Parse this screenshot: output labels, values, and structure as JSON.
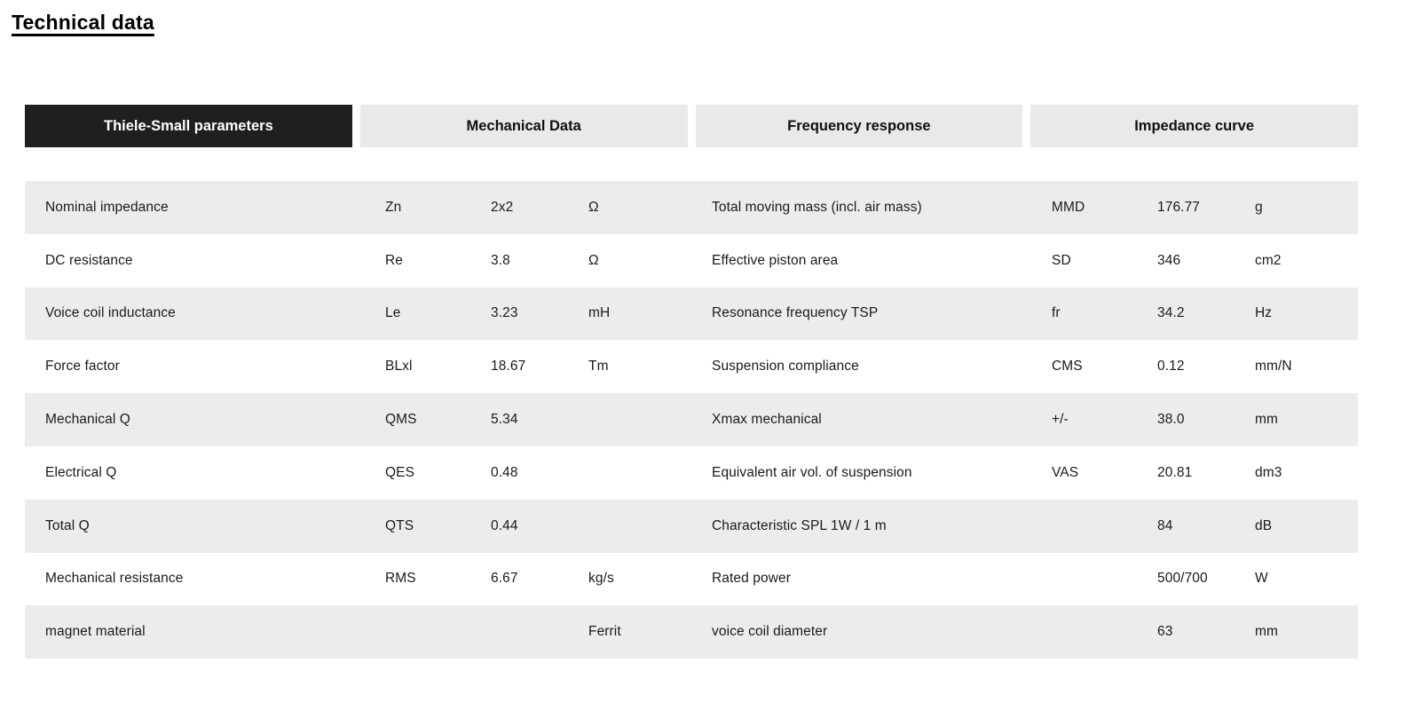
{
  "page": {
    "title": "Technical data"
  },
  "colors": {
    "active_tab_bg": "#1f1f1f",
    "active_tab_text": "#ffffff",
    "inactive_tab_bg": "#e9e9e9",
    "stripe_bg": "#ececec",
    "text": "#1a1a1a"
  },
  "tabs": [
    {
      "label": "Thiele-Small parameters",
      "slug": "thiele-small-parameters",
      "active": true
    },
    {
      "label": "Mechanical Data",
      "slug": "mechanical-data",
      "active": false
    },
    {
      "label": "Frequency response",
      "slug": "frequency-response",
      "active": false
    },
    {
      "label": "Impedance curve",
      "slug": "impedance-curve",
      "active": false
    }
  ],
  "table": {
    "rows": [
      {
        "left": {
          "label": "Nominal impedance",
          "symbol": "Zn",
          "value": "2x2",
          "unit": "Ω"
        },
        "right": {
          "label": "Total moving mass (incl. air mass)",
          "symbol": "MMD",
          "value": "176.77",
          "unit": "g"
        }
      },
      {
        "left": {
          "label": "DC resistance",
          "symbol": "Re",
          "value": "3.8",
          "unit": "Ω"
        },
        "right": {
          "label": "Effective piston area",
          "symbol": "SD",
          "value": "346",
          "unit": "cm2"
        }
      },
      {
        "left": {
          "label": "Voice coil inductance",
          "symbol": "Le",
          "value": "3.23",
          "unit": "mH"
        },
        "right": {
          "label": "Resonance frequency TSP",
          "symbol": "fr",
          "value": "34.2",
          "unit": "Hz"
        }
      },
      {
        "left": {
          "label": "Force factor",
          "symbol": "BLxl",
          "value": "18.67",
          "unit": "Tm"
        },
        "right": {
          "label": "Suspension compliance",
          "symbol": "CMS",
          "value": "0.12",
          "unit": "mm/N"
        }
      },
      {
        "left": {
          "label": "Mechanical Q",
          "symbol": "QMS",
          "value": "5.34",
          "unit": ""
        },
        "right": {
          "label": "Xmax mechanical",
          "symbol": "+/-",
          "value": "38.0",
          "unit": "mm"
        }
      },
      {
        "left": {
          "label": "Electrical Q",
          "symbol": "QES",
          "value": "0.48",
          "unit": ""
        },
        "right": {
          "label": "Equivalent air vol. of suspension",
          "symbol": "VAS",
          "value": "20.81",
          "unit": "dm3"
        }
      },
      {
        "left": {
          "label": "Total Q",
          "symbol": "QTS",
          "value": "0.44",
          "unit": ""
        },
        "right": {
          "label": "Characteristic SPL 1W / 1 m",
          "symbol": "",
          "value": "84",
          "unit": "dB"
        }
      },
      {
        "left": {
          "label": "Mechanical resistance",
          "symbol": "RMS",
          "value": "6.67",
          "unit": "kg/s"
        },
        "right": {
          "label": "Rated power",
          "symbol": "",
          "value": "500/700",
          "unit": "W"
        }
      },
      {
        "left": {
          "label": "magnet material",
          "symbol": "",
          "value": "",
          "unit": "Ferrit"
        },
        "right": {
          "label": "voice coil diameter",
          "symbol": "",
          "value": "63",
          "unit": "mm"
        }
      }
    ]
  }
}
